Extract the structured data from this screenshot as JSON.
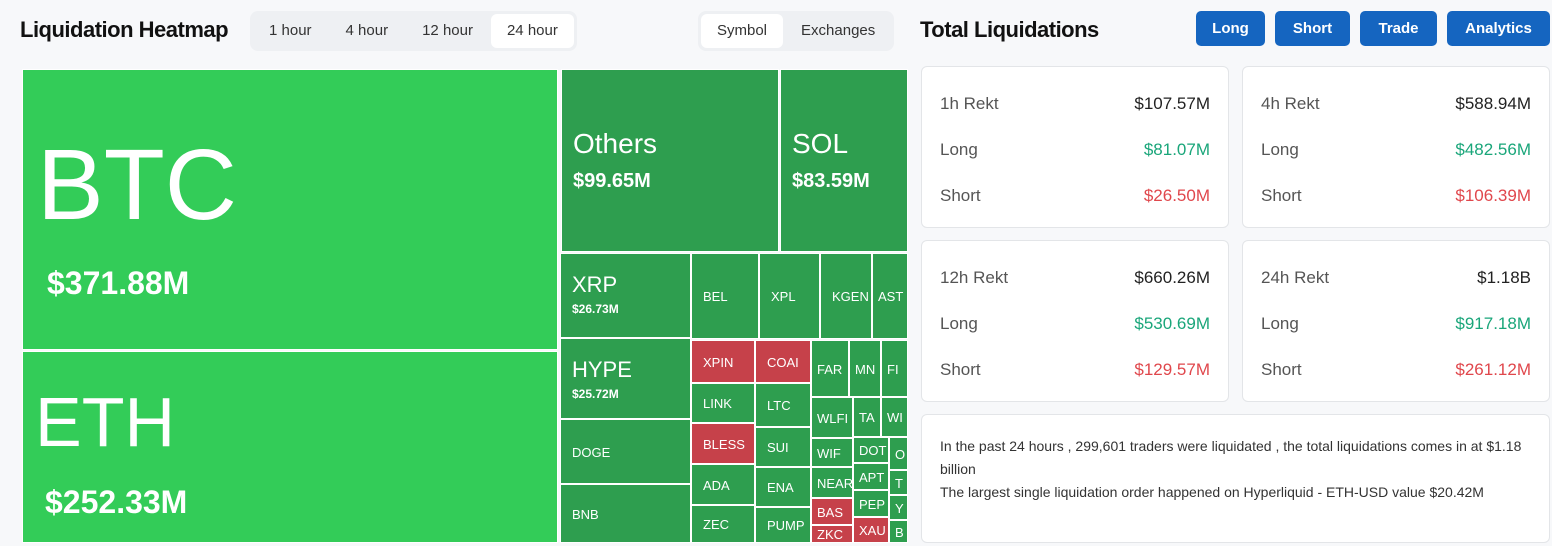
{
  "header": {
    "title": "Liquidation Heatmap",
    "time_tabs": [
      "1 hour",
      "4 hour",
      "12 hour",
      "24 hour"
    ],
    "active_time_tab": "24 hour",
    "view_tabs": [
      "Symbol",
      "Exchanges"
    ],
    "active_view_tab": "Symbol"
  },
  "colors": {
    "bright_green": "#33cc58",
    "green": "#2e9e4f",
    "red": "#c6414a",
    "button_blue": "#1565c0",
    "long_text": "#1aa67a",
    "short_text": "#e0474c"
  },
  "treemap": [
    {
      "symbol": "BTC",
      "value": "$371.88M",
      "tone": "bright_green"
    },
    {
      "symbol": "ETH",
      "value": "$252.33M",
      "tone": "bright_green"
    },
    {
      "symbol": "Others",
      "value": "$99.65M",
      "tone": "green"
    },
    {
      "symbol": "SOL",
      "value": "$83.59M",
      "tone": "green"
    },
    {
      "symbol": "XRP",
      "value": "$26.73M",
      "tone": "green"
    },
    {
      "symbol": "HYPE",
      "value": "$25.72M",
      "tone": "green"
    },
    {
      "symbol": "DOGE",
      "tone": "green"
    },
    {
      "symbol": "BNB",
      "tone": "green"
    },
    {
      "symbol": "BEL",
      "tone": "green"
    },
    {
      "symbol": "XPL",
      "tone": "green"
    },
    {
      "symbol": "KGEN",
      "tone": "green"
    },
    {
      "symbol": "AST",
      "tone": "green"
    },
    {
      "symbol": "XPIN",
      "tone": "red"
    },
    {
      "symbol": "COAI",
      "tone": "red"
    },
    {
      "symbol": "LINK",
      "tone": "green"
    },
    {
      "symbol": "LTC",
      "tone": "green"
    },
    {
      "symbol": "BLESS",
      "tone": "red"
    },
    {
      "symbol": "SUI",
      "tone": "green"
    },
    {
      "symbol": "ADA",
      "tone": "green"
    },
    {
      "symbol": "ENA",
      "tone": "green"
    },
    {
      "symbol": "ZEC",
      "tone": "green"
    },
    {
      "symbol": "PUMP",
      "tone": "green"
    },
    {
      "symbol": "FAR",
      "tone": "green"
    },
    {
      "symbol": "MN",
      "tone": "green"
    },
    {
      "symbol": "FI",
      "tone": "green"
    },
    {
      "symbol": "WLFI",
      "tone": "green"
    },
    {
      "symbol": "TA",
      "tone": "green"
    },
    {
      "symbol": "WI",
      "tone": "green"
    },
    {
      "symbol": "WIF",
      "tone": "green"
    },
    {
      "symbol": "NEAR",
      "tone": "green"
    },
    {
      "symbol": "BAS",
      "tone": "red"
    },
    {
      "symbol": "ZKC",
      "tone": "red"
    },
    {
      "symbol": "DOT",
      "tone": "green"
    },
    {
      "symbol": "O",
      "tone": "green"
    },
    {
      "symbol": "APT",
      "tone": "green"
    },
    {
      "symbol": "T",
      "tone": "green"
    },
    {
      "symbol": "PEP",
      "tone": "green"
    },
    {
      "symbol": "Y",
      "tone": "green"
    },
    {
      "symbol": "XAU",
      "tone": "red"
    },
    {
      "symbol": "B",
      "tone": "green"
    }
  ],
  "totals": {
    "title": "Total Liquidations",
    "buttons": [
      "Long",
      "Short",
      "Trade",
      "Analytics"
    ],
    "cards": [
      {
        "label": "1h Rekt",
        "total": "$107.57M",
        "long_label": "Long",
        "long": "$81.07M",
        "short_label": "Short",
        "short": "$26.50M"
      },
      {
        "label": "4h Rekt",
        "total": "$588.94M",
        "long_label": "Long",
        "long": "$482.56M",
        "short_label": "Short",
        "short": "$106.39M"
      },
      {
        "label": "12h Rekt",
        "total": "$660.26M",
        "long_label": "Long",
        "long": "$530.69M",
        "short_label": "Short",
        "short": "$129.57M"
      },
      {
        "label": "24h Rekt",
        "total": "$1.18B",
        "long_label": "Long",
        "long": "$917.18M",
        "short_label": "Short",
        "short": "$261.12M"
      }
    ],
    "summary_line1": "In the past 24 hours , 299,601 traders were liquidated , the total liquidations comes in at $1.18 billion",
    "summary_line2": "The largest single liquidation order happened on Hyperliquid - ETH-USD value $20.42M"
  }
}
